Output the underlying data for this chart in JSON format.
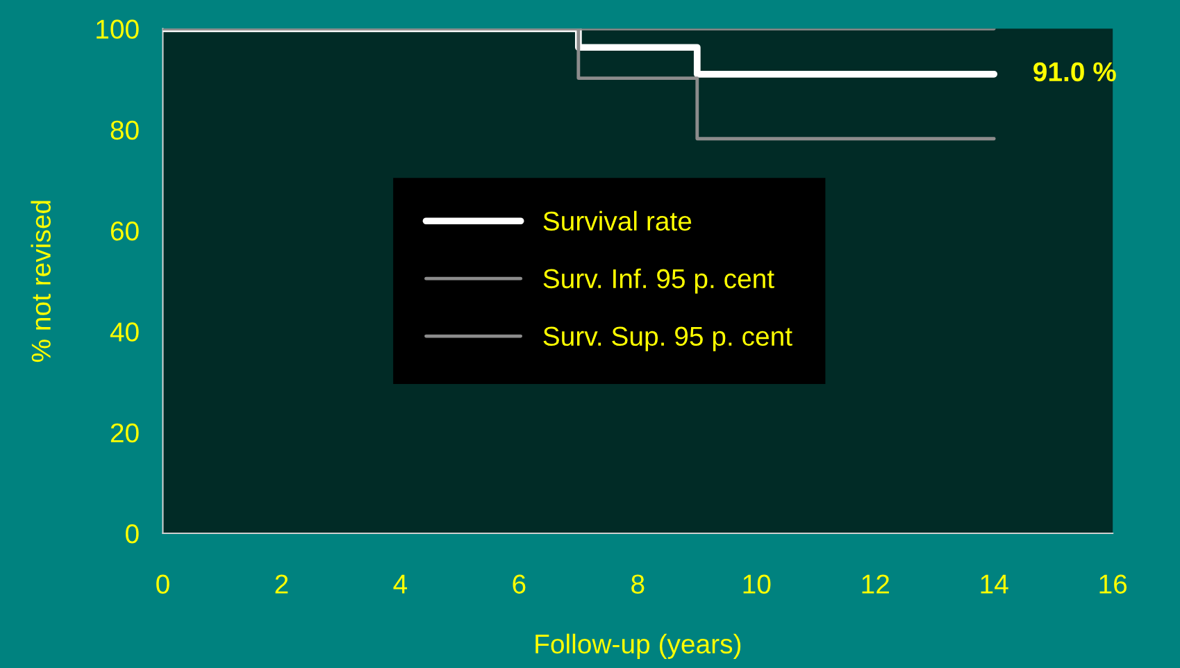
{
  "chart_data": {
    "type": "step",
    "xlabel": "Follow-up (years)",
    "ylabel": "% not revised",
    "xlim": [
      0,
      16
    ],
    "ylim": [
      0,
      100
    ],
    "xticks": [
      0,
      2,
      4,
      6,
      8,
      10,
      12,
      14,
      16
    ],
    "yticks": [
      0,
      20,
      40,
      60,
      80,
      100
    ],
    "grid": false,
    "legend": "center",
    "series": [
      {
        "name": "Survival rate",
        "color": "#ffffff",
        "x": [
          0,
          7,
          9,
          14
        ],
        "values": [
          100,
          96.3,
          91.0,
          91.0
        ]
      },
      {
        "name": "Surv. Inf. 95 p. cent",
        "color": "#8c8c8c",
        "x": [
          0,
          7,
          9,
          14
        ],
        "values": [
          100,
          90.2,
          78.2,
          78.2
        ]
      },
      {
        "name": "Surv. Sup. 95 p. cent",
        "color": "#8c8c8c",
        "x": [
          0,
          7,
          9,
          14
        ],
        "values": [
          100,
          100,
          100,
          100
        ]
      }
    ],
    "annotations": [
      {
        "text": "91.0 %",
        "x": 14,
        "y": 91.0
      }
    ]
  }
}
